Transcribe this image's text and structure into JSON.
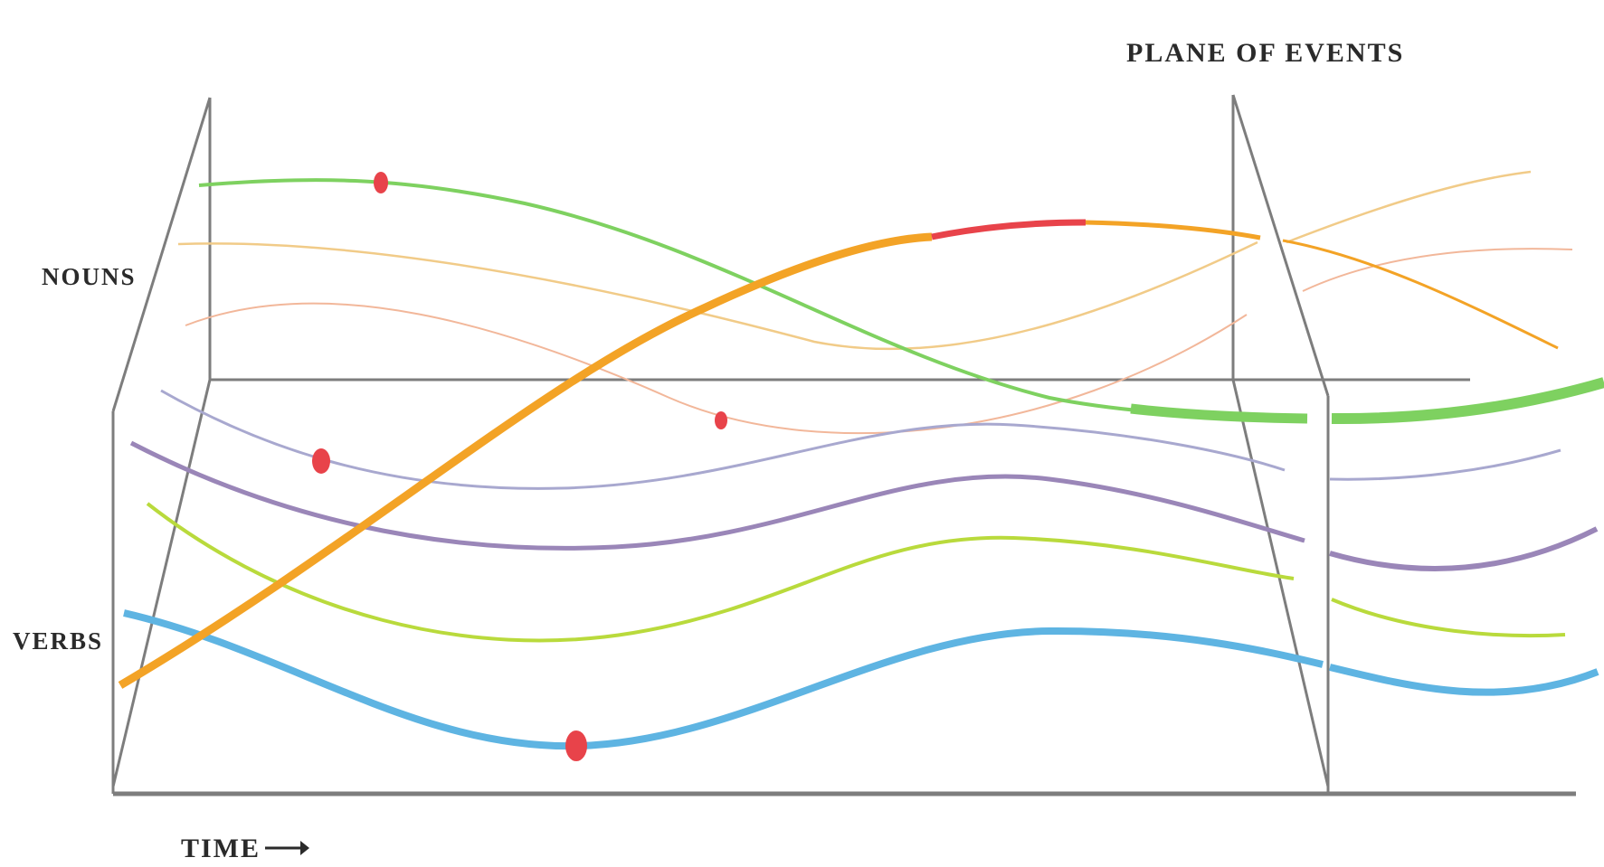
{
  "labels": {
    "plane": "PLANE OF EVENTS",
    "nouns": "NOUNS",
    "verbs": "VERBS",
    "time": "TIME"
  },
  "colors": {
    "frame": "#7d7d7d",
    "green": "#7ed160",
    "orange": "#f3a326",
    "tan": "#f1cb88",
    "peach": "#f2b79a",
    "lavender": "#a8a8cf",
    "purple": "#9a86b8",
    "lime": "#b9da3c",
    "blue": "#5eb4e2",
    "red": "#e8434a"
  }
}
